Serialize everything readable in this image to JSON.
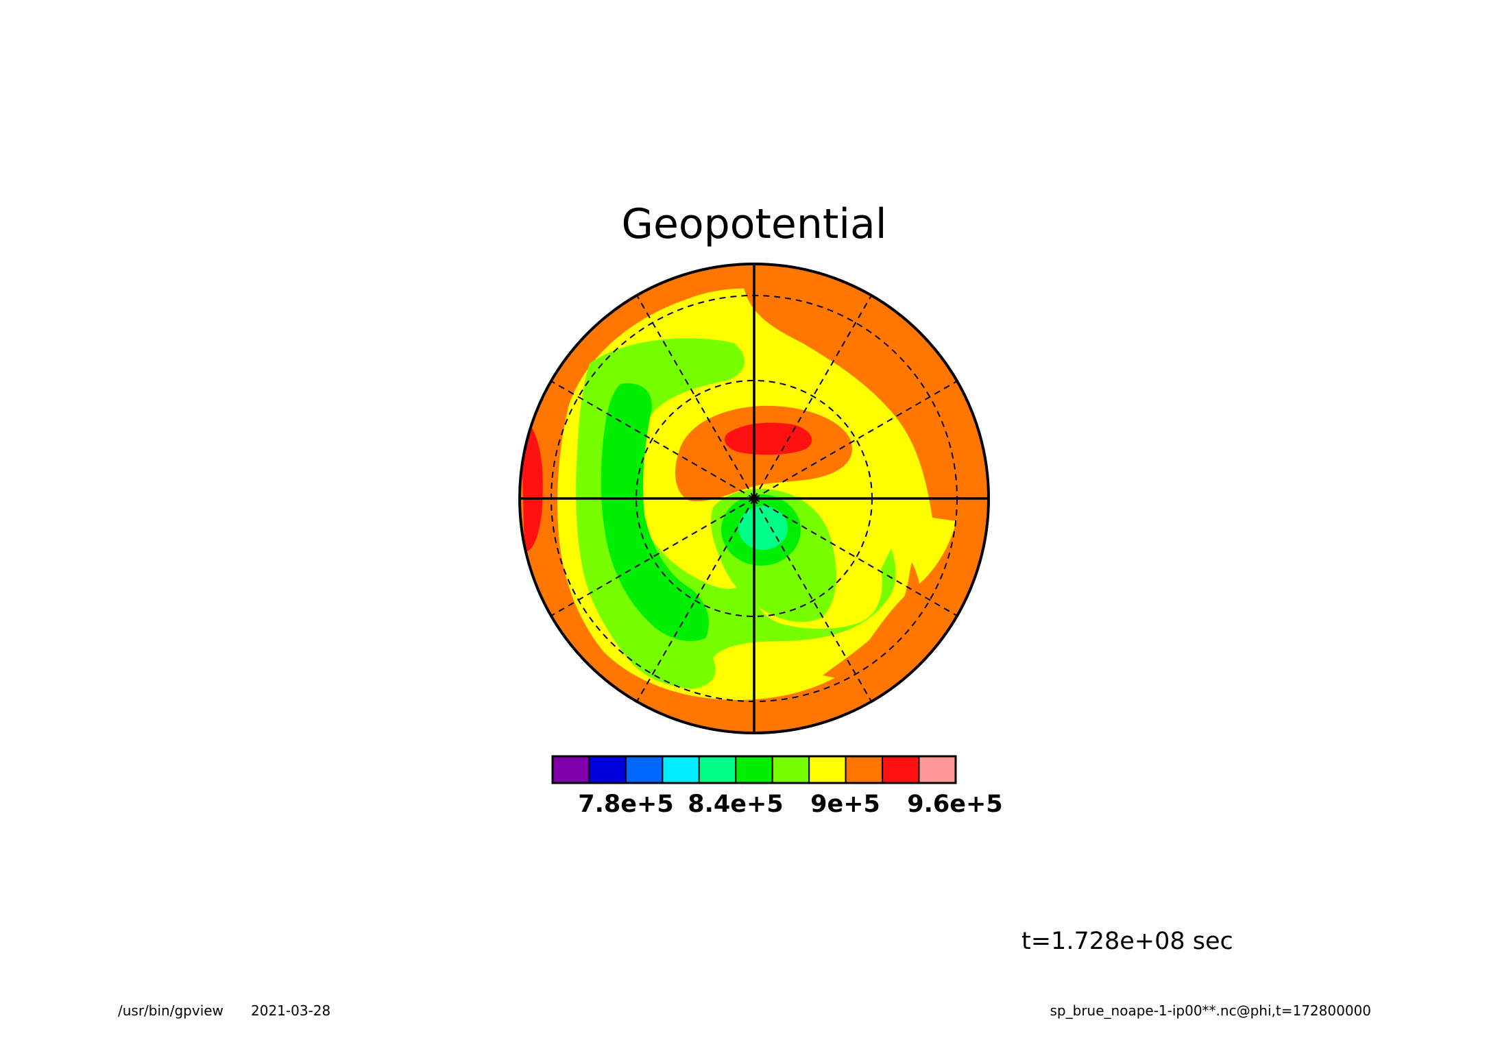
{
  "title": "Geopotential",
  "time_label": "t=1.728e+08 sec",
  "footer": {
    "program": "/usr/bin/gpview",
    "date": "2021-03-28",
    "variable": "sp_brue_noape-1-ip00**.nc@phi,t=172800000"
  },
  "colorbar": {
    "colors": [
      "#7f00aa",
      "#0000dd",
      "#0066ff",
      "#00eeff",
      "#00ff88",
      "#00ee00",
      "#77ff00",
      "#ffff00",
      "#ff7700",
      "#ff1111",
      "#ff9999"
    ],
    "tick_labels": [
      "7.8e+5",
      "8.4e+5",
      "9e+5",
      "9.6e+5"
    ]
  },
  "chart_data": {
    "type": "heatmap",
    "title": "Geopotential",
    "projection": "polar-stereographic",
    "colormap": {
      "colors": [
        "#7f00aa",
        "#0000dd",
        "#0066ff",
        "#00eeff",
        "#00ff88",
        "#00ee00",
        "#77ff00",
        "#ffff00",
        "#ff7700",
        "#ff1111",
        "#ff9999"
      ],
      "levels": [
        750000,
        780000,
        810000,
        840000,
        870000,
        900000,
        930000,
        960000
      ],
      "tick_values": [
        780000,
        840000,
        900000,
        960000
      ],
      "tick_labels": [
        "7.8e+5",
        "8.4e+5",
        "9e+5",
        "9.6e+5"
      ]
    },
    "grid": true
  }
}
